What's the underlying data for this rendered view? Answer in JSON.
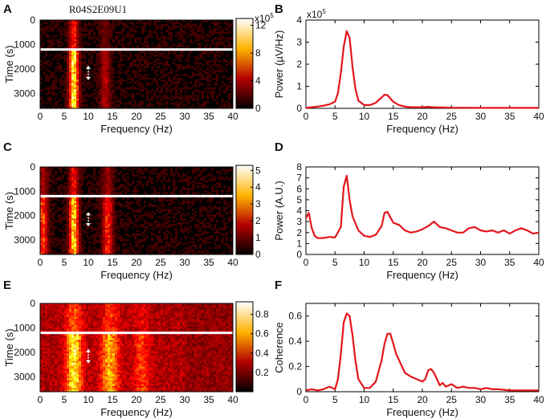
{
  "figure_title": "R04S2E09U1",
  "colors": {
    "line": "#e3161c",
    "marker": "#ffffff",
    "axis": "#000000"
  },
  "chart_data": [
    {
      "panel": "A",
      "type": "heatmap",
      "xlabel": "Frequency (Hz)",
      "ylabel": "Time (s)",
      "xlim": [
        0,
        40
      ],
      "ylim": [
        0,
        3600
      ],
      "xticks": [
        "0",
        "5",
        "10",
        "15",
        "20",
        "25",
        "30",
        "35",
        "40"
      ],
      "yticks": [
        "0",
        "1000",
        "2000",
        "3000"
      ],
      "colorbar": {
        "ticks": [
          "0",
          "4",
          "8",
          "12"
        ],
        "multiplier": "x10",
        "exponent": "5",
        "range": [
          0,
          13
        ]
      },
      "marker_time_s": 1200,
      "arrow": {
        "freq_hz": 10,
        "time_s": 2150
      },
      "bands": [
        {
          "freq_hz": 7,
          "width_hz": 0.9,
          "level": 0.85
        },
        {
          "freq_hz": 13.5,
          "width_hz": 1.0,
          "level": 0.22
        }
      ]
    },
    {
      "panel": "B",
      "type": "line",
      "xlabel": "Frequency (Hz)",
      "ylabel": "Power (µV/Hz)",
      "xlim": [
        0,
        40
      ],
      "ylim": [
        0,
        4
      ],
      "xticks": [
        "0",
        "5",
        "10",
        "15",
        "20",
        "25",
        "30",
        "35",
        "40"
      ],
      "yticks": [
        "0",
        "1",
        "2",
        "3",
        "4"
      ],
      "multiplier": "x10",
      "exponent": "5",
      "series": [
        {
          "name": "Power",
          "x": [
            0,
            1,
            2,
            3,
            4,
            5,
            5.5,
            6,
            6.5,
            7,
            7.5,
            8,
            8.5,
            9,
            10,
            11,
            12,
            13,
            13.5,
            14,
            14.5,
            15,
            16,
            17,
            18,
            20,
            21,
            22,
            25,
            30,
            35,
            40
          ],
          "y": [
            0.02,
            0.05,
            0.08,
            0.12,
            0.18,
            0.3,
            0.7,
            1.6,
            2.8,
            3.5,
            3.2,
            1.9,
            0.9,
            0.35,
            0.15,
            0.15,
            0.25,
            0.5,
            0.62,
            0.6,
            0.45,
            0.3,
            0.15,
            0.08,
            0.05,
            0.05,
            0.07,
            0.05,
            0.03,
            0.02,
            0.02,
            0.02
          ]
        }
      ]
    },
    {
      "panel": "C",
      "type": "heatmap",
      "xlabel": "Frequency (Hz)",
      "ylabel": "Time (s)",
      "xlim": [
        0,
        40
      ],
      "ylim": [
        0,
        3600
      ],
      "xticks": [
        "0",
        "5",
        "10",
        "15",
        "20",
        "25",
        "30",
        "35",
        "40"
      ],
      "yticks": [
        "0",
        "1000",
        "2000",
        "3000"
      ],
      "colorbar": {
        "ticks": [
          "0",
          "1",
          "2",
          "3",
          "4",
          "5"
        ],
        "range": [
          0,
          5.3
        ]
      },
      "marker_time_s": 1200,
      "arrow": {
        "freq_hz": 10,
        "time_s": 2150
      },
      "bands": [
        {
          "freq_hz": 0.5,
          "width_hz": 1.0,
          "level": 0.45
        },
        {
          "freq_hz": 7,
          "width_hz": 0.9,
          "level": 0.75
        },
        {
          "freq_hz": 14,
          "width_hz": 1.0,
          "level": 0.4
        }
      ]
    },
    {
      "panel": "D",
      "type": "line",
      "xlabel": "Frequency (Hz)",
      "ylabel": "Power (A.U.)",
      "xlim": [
        0,
        40
      ],
      "ylim": [
        0,
        8
      ],
      "xticks": [
        "0",
        "5",
        "10",
        "15",
        "20",
        "25",
        "30",
        "35",
        "40"
      ],
      "yticks": [
        "0",
        "1",
        "2",
        "3",
        "4",
        "5",
        "6",
        "7",
        "8"
      ],
      "series": [
        {
          "name": "Power",
          "x": [
            0,
            0.5,
            1,
            1.5,
            2,
            3,
            4,
            5,
            6,
            6.5,
            7,
            7.5,
            8,
            9,
            10,
            11,
            12,
            13,
            13.5,
            14,
            14.5,
            15,
            16,
            17,
            18,
            19,
            20,
            21,
            22,
            23,
            24,
            25,
            26,
            27,
            28,
            29,
            30,
            31,
            32,
            33,
            34,
            35,
            36,
            37,
            38,
            39,
            40
          ],
          "y": [
            3.3,
            3.8,
            2.4,
            1.7,
            1.5,
            1.5,
            1.6,
            1.55,
            2.5,
            6.2,
            7.2,
            5.0,
            3.5,
            2.2,
            1.7,
            1.6,
            1.8,
            2.6,
            3.8,
            3.9,
            3.4,
            2.9,
            2.7,
            2.2,
            2.0,
            2.1,
            2.3,
            2.6,
            3.0,
            2.5,
            2.4,
            2.2,
            2.0,
            2.0,
            2.4,
            2.5,
            2.2,
            2.1,
            2.2,
            2.0,
            2.2,
            1.9,
            2.2,
            2.4,
            2.2,
            1.9,
            2.0
          ]
        }
      ]
    },
    {
      "panel": "E",
      "type": "heatmap",
      "xlabel": "Frequency (Hz)",
      "ylabel": "Time (s)",
      "xlim": [
        0,
        40
      ],
      "ylim": [
        0,
        3600
      ],
      "xticks": [
        "0",
        "5",
        "10",
        "15",
        "20",
        "25",
        "30",
        "35",
        "40"
      ],
      "yticks": [
        "0",
        "1000",
        "2000",
        "3000"
      ],
      "colorbar": {
        "ticks": [
          "0.2",
          "0.4",
          "0.6",
          "0.8"
        ],
        "range": [
          0,
          0.93
        ]
      },
      "marker_time_s": 1200,
      "arrow": {
        "freq_hz": 10,
        "time_s": 2150
      },
      "bands": [
        {
          "freq_hz": 7,
          "width_hz": 1.6,
          "level": 0.6
        },
        {
          "freq_hz": 14.5,
          "width_hz": 1.8,
          "level": 0.45
        },
        {
          "freq_hz": 21,
          "width_hz": 1.5,
          "level": 0.25
        }
      ]
    },
    {
      "panel": "F",
      "type": "line",
      "xlabel": "Frequency (Hz)",
      "ylabel": "Coherence",
      "xlim": [
        0,
        40
      ],
      "ylim": [
        0,
        0.7
      ],
      "xticks": [
        "0",
        "5",
        "10",
        "15",
        "20",
        "25",
        "30",
        "35",
        "40"
      ],
      "yticks": [
        "0",
        "0.2",
        "0.4",
        "0.6"
      ],
      "series": [
        {
          "name": "Coherence",
          "x": [
            0,
            1,
            2,
            3,
            4,
            4.5,
            5,
            5.5,
            6,
            6.5,
            7,
            7.5,
            8,
            8.5,
            9,
            10,
            11,
            12,
            13,
            13.5,
            14,
            14.5,
            15,
            15.5,
            16,
            17,
            18,
            19,
            20,
            20.5,
            21,
            21.5,
            22,
            23,
            23.5,
            24,
            25,
            26,
            27,
            28,
            29,
            30,
            31,
            32,
            33,
            35,
            37,
            40
          ],
          "y": [
            0.01,
            0.02,
            0.01,
            0.02,
            0.04,
            0.03,
            0.02,
            0.1,
            0.3,
            0.55,
            0.62,
            0.6,
            0.45,
            0.25,
            0.1,
            0.03,
            0.03,
            0.08,
            0.25,
            0.38,
            0.46,
            0.46,
            0.38,
            0.3,
            0.25,
            0.15,
            0.12,
            0.1,
            0.08,
            0.1,
            0.17,
            0.18,
            0.15,
            0.05,
            0.07,
            0.04,
            0.06,
            0.03,
            0.04,
            0.03,
            0.03,
            0.02,
            0.03,
            0.02,
            0.02,
            0.01,
            0.01,
            0.01
          ]
        }
      ]
    }
  ]
}
